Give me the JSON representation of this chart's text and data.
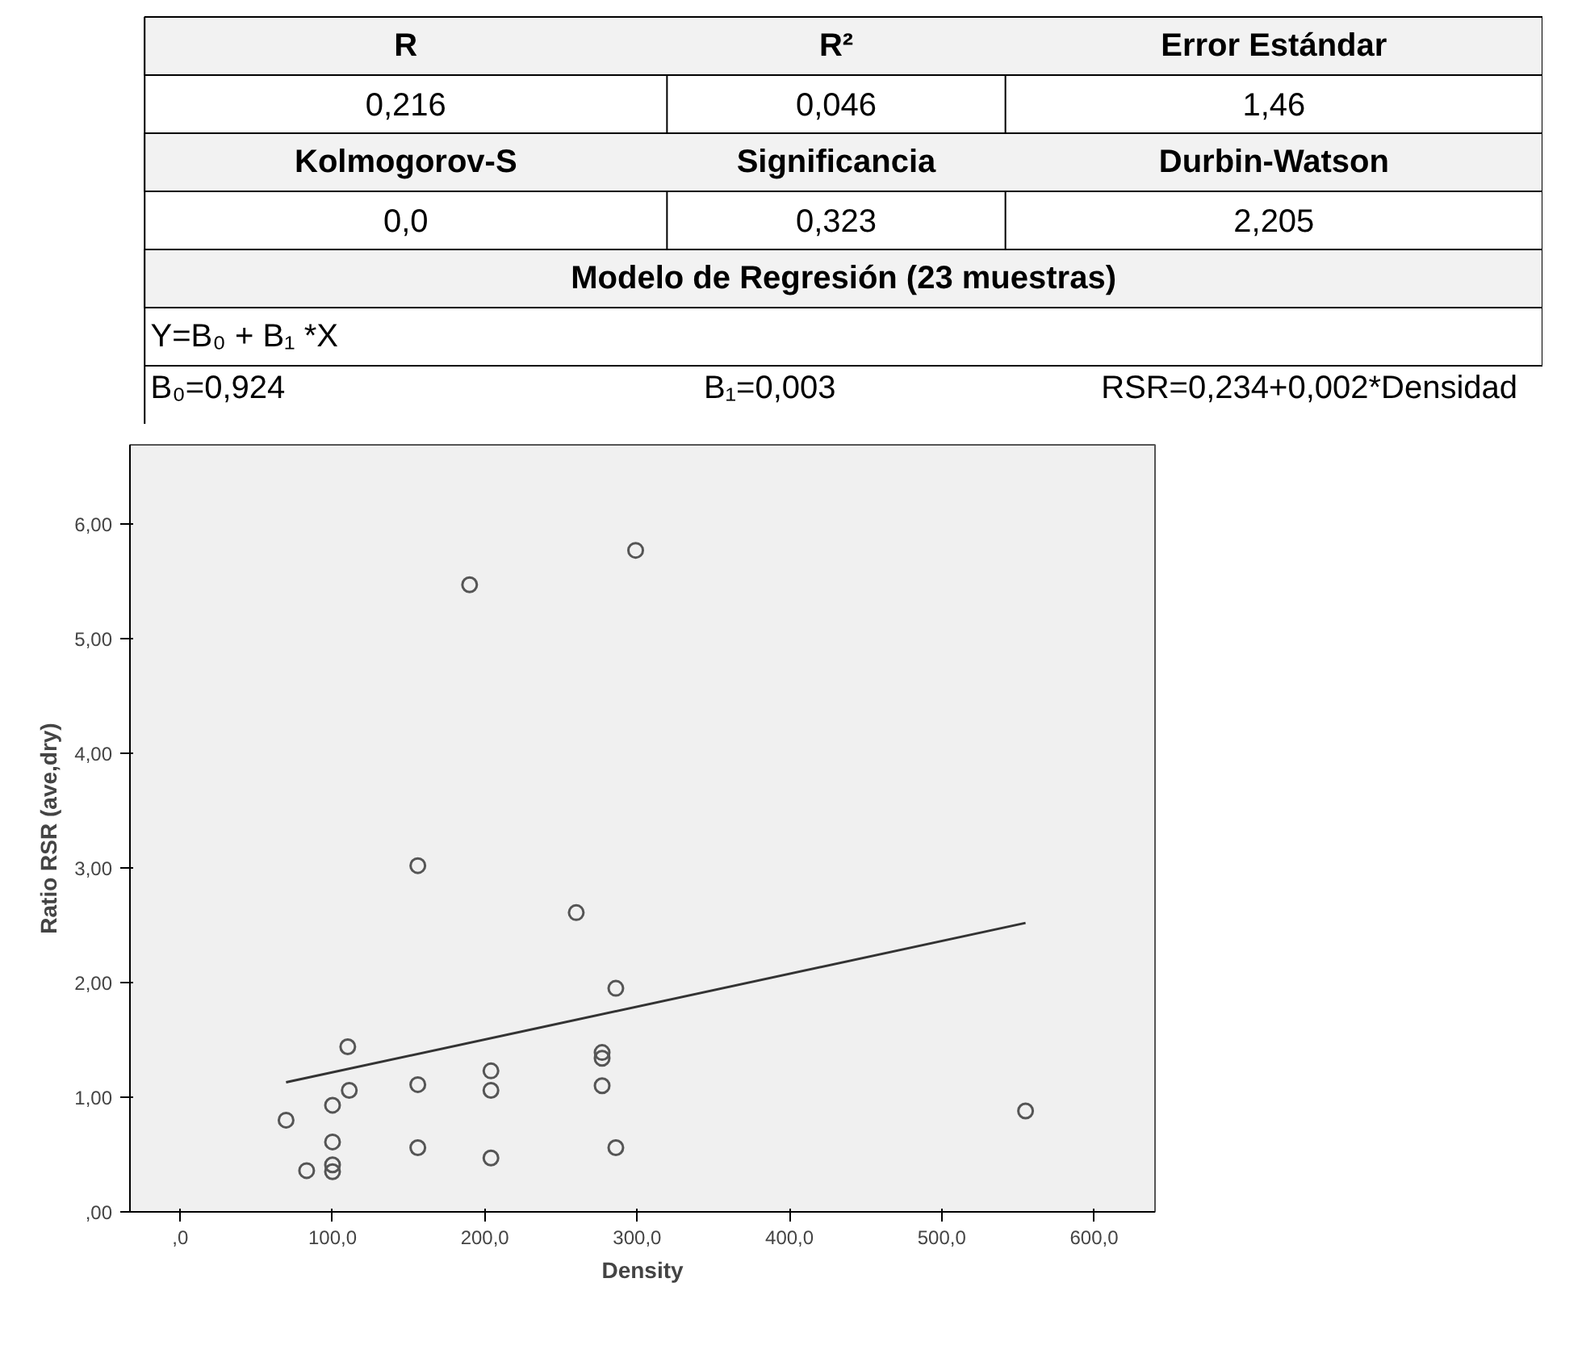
{
  "chart_data": [
    {
      "type": "other",
      "annotations": [
        "R",
        "R²",
        "Error Estándar",
        "0,216",
        "0,046",
        "1,46",
        "Kolmogorov-S",
        "Significancia",
        "Durbin-Watson",
        "0,0",
        "0,323",
        "2,205",
        "Modelo de Regresión (23 muestras)",
        "Y=B₀ + B₁ *X",
        "B₀=0,924",
        "B₁=0,003",
        "RSR=0,234+0,002*Densidad"
      ]
    },
    {
      "type": "scatter",
      "xlabel": "Density",
      "ylabel": "Ratio RSR (ave,dry)",
      "grid": false,
      "xlim": [
        -33,
        640
      ],
      "ylim": [
        0,
        6.69
      ],
      "xticks": [
        {
          "value": 0,
          "label": ",0"
        },
        {
          "value": 100,
          "label": "100,0"
        },
        {
          "value": 200,
          "label": "200,0"
        },
        {
          "value": 300,
          "label": "300,0"
        },
        {
          "value": 400,
          "label": "400,0"
        },
        {
          "value": 500,
          "label": "500,0"
        },
        {
          "value": 600,
          "label": "600,0"
        }
      ],
      "yticks": [
        {
          "value": 0,
          "label": ",00"
        },
        {
          "value": 1,
          "label": "1,00"
        },
        {
          "value": 2,
          "label": "2,00"
        },
        {
          "value": 3,
          "label": "3,00"
        },
        {
          "value": 4,
          "label": "4,00"
        },
        {
          "value": 5,
          "label": "5,00"
        },
        {
          "value": 6,
          "label": "6,00"
        }
      ],
      "series": [
        {
          "type": "scatter",
          "marker": "circle",
          "color": "#555555",
          "x": [
            69.5,
            83,
            100,
            100,
            100,
            100,
            110,
            111,
            156,
            156,
            156,
            190,
            204,
            204,
            204,
            260,
            277,
            277,
            277,
            286,
            286,
            299,
            555
          ],
          "values": [
            0.8,
            0.36,
            0.35,
            0.41,
            0.61,
            0.93,
            1.44,
            1.06,
            1.11,
            0.56,
            3.02,
            5.47,
            1.23,
            1.06,
            0.47,
            2.61,
            1.39,
            1.34,
            1.1,
            1.95,
            0.56,
            5.77,
            0.88
          ]
        },
        {
          "type": "line",
          "color": "#333333",
          "x": [
            69.5,
            555
          ],
          "values": [
            1.13,
            2.52
          ]
        }
      ]
    }
  ]
}
